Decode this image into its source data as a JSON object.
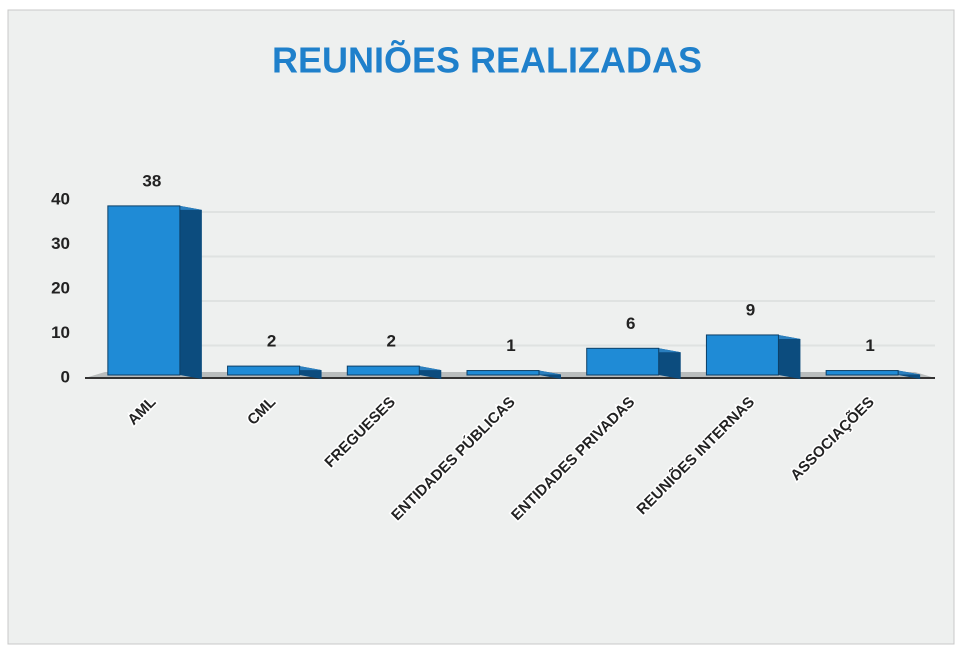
{
  "chart_data": {
    "type": "bar",
    "title": "REUNIÕES REALIZADAS",
    "categories": [
      "AML",
      "CML",
      "FREGUESES",
      "ENTIDADES PÚBLICAS",
      "ENTIDADES PRIVADAS",
      "REUNIÕES INTERNAS",
      "ASSOCIAÇÕES"
    ],
    "values": [
      38,
      2,
      2,
      1,
      6,
      9,
      1
    ],
    "color": "#1f8bd6",
    "ylim": [
      0,
      40
    ],
    "yticks": [
      0,
      10,
      20,
      30,
      40
    ],
    "grid": true
  }
}
